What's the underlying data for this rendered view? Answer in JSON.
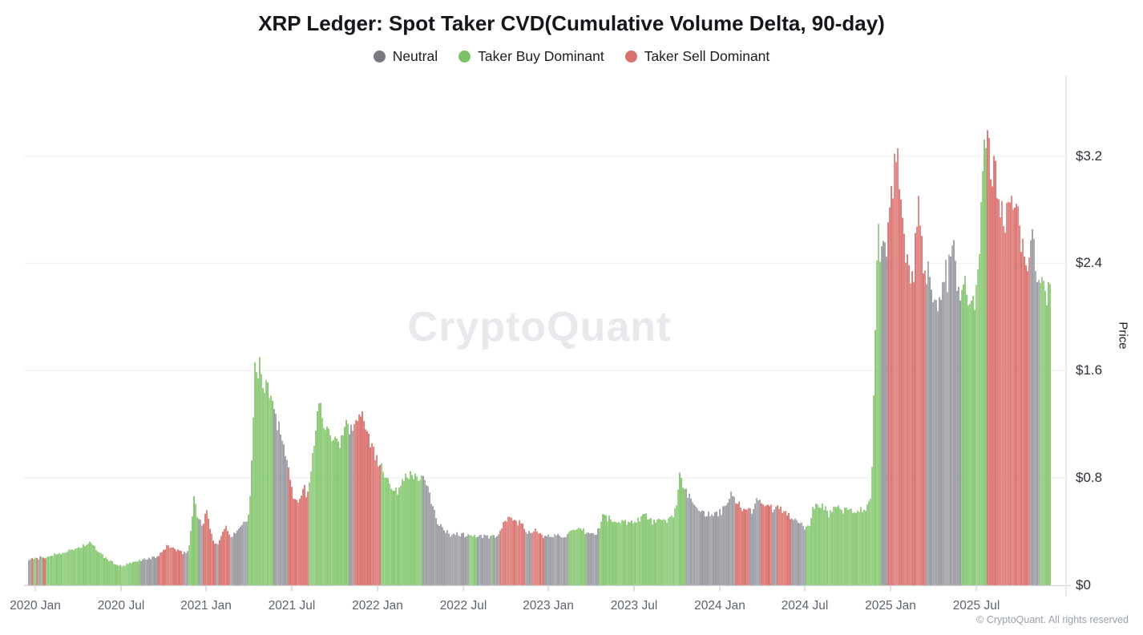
{
  "title": "XRP Ledger: Spot Taker CVD(Cumulative Volume Delta, 90-day)",
  "legend": [
    {
      "key": "N",
      "label": "Neutral",
      "color": "#787881"
    },
    {
      "key": "B",
      "label": "Taker Buy Dominant",
      "color": "#7cc166"
    },
    {
      "key": "S",
      "label": "Taker Sell Dominant",
      "color": "#d8706c"
    }
  ],
  "watermark": "CryptoQuant",
  "copyright": "© CryptoQuant. All rights reserved",
  "chart_data": {
    "type": "bar",
    "title": "XRP Ledger: Spot Taker CVD(Cumulative Volume Delta, 90-day)",
    "xlabel": "",
    "ylabel": "Price",
    "ylim": [
      0,
      3.8
    ],
    "grid": "horizontal",
    "legend_position": "top",
    "y_ticks": [
      {
        "value": 0,
        "label": "$0"
      },
      {
        "value": 0.8,
        "label": "$0.8"
      },
      {
        "value": 1.6,
        "label": "$1.6"
      },
      {
        "value": 2.4,
        "label": "$2.4"
      },
      {
        "value": 3.2,
        "label": "$3.2"
      }
    ],
    "axis_span": 1274,
    "x_ticks": [
      {
        "pos": 8,
        "label": "2020 Jan"
      },
      {
        "pos": 115,
        "label": "2020 Jul"
      },
      {
        "pos": 221,
        "label": "2021 Jan"
      },
      {
        "pos": 328,
        "label": "2021 Jul"
      },
      {
        "pos": 435,
        "label": "2022 Jan"
      },
      {
        "pos": 542,
        "label": "2022 Jul"
      },
      {
        "pos": 648,
        "label": "2023 Jan"
      },
      {
        "pos": 755,
        "label": "2023 Jul"
      },
      {
        "pos": 862,
        "label": "2024 Jan"
      },
      {
        "pos": 968,
        "label": "2024 Jul"
      },
      {
        "pos": 1075,
        "label": "2025 Jan"
      },
      {
        "pos": 1182,
        "label": "2025 Jul"
      }
    ],
    "categories": {
      "N": "Neutral",
      "B": "Taker Buy Dominant",
      "S": "Taker Sell Dominant"
    },
    "colors": {
      "N": "#8d8d96",
      "B": "#76c05e",
      "S": "#d65f5b"
    },
    "series_keyframes": [
      [
        0,
        0.19,
        "N"
      ],
      [
        3,
        0.2,
        "S"
      ],
      [
        6,
        0.19,
        "B"
      ],
      [
        9,
        0.21,
        "S"
      ],
      [
        12,
        0.2,
        "N"
      ],
      [
        15,
        0.21,
        "B"
      ],
      [
        18,
        0.2,
        "S"
      ],
      [
        22,
        0.21,
        "B"
      ],
      [
        34,
        0.235,
        "B"
      ],
      [
        49,
        0.255,
        "B"
      ],
      [
        64,
        0.285,
        "B"
      ],
      [
        76,
        0.315,
        "B"
      ],
      [
        84,
        0.27,
        "B"
      ],
      [
        94,
        0.21,
        "B"
      ],
      [
        106,
        0.165,
        "B"
      ],
      [
        116,
        0.14,
        "B"
      ],
      [
        122,
        0.155,
        "B"
      ],
      [
        130,
        0.17,
        "B"
      ],
      [
        136,
        0.18,
        "B"
      ],
      [
        140,
        0.19,
        "N"
      ],
      [
        150,
        0.2,
        "N"
      ],
      [
        158,
        0.21,
        "N"
      ],
      [
        161,
        0.215,
        "S"
      ],
      [
        166,
        0.245,
        "S"
      ],
      [
        172,
        0.295,
        "S"
      ],
      [
        178,
        0.285,
        "S"
      ],
      [
        184,
        0.26,
        "S"
      ],
      [
        190,
        0.245,
        "S"
      ],
      [
        193,
        0.24,
        "N"
      ],
      [
        198,
        0.255,
        "N"
      ],
      [
        200,
        0.3,
        "B"
      ],
      [
        203,
        0.45,
        "B"
      ],
      [
        206,
        0.66,
        "B"
      ],
      [
        208,
        0.6,
        "B"
      ],
      [
        210,
        0.52,
        "B"
      ],
      [
        212,
        0.52,
        "N"
      ],
      [
        214,
        0.48,
        "N"
      ],
      [
        216,
        0.45,
        "N"
      ],
      [
        218,
        0.44,
        "S"
      ],
      [
        220,
        0.52,
        "S"
      ],
      [
        222,
        0.57,
        "S"
      ],
      [
        224,
        0.5,
        "S"
      ],
      [
        226,
        0.44,
        "S"
      ],
      [
        229,
        0.36,
        "S"
      ],
      [
        231,
        0.31,
        "S"
      ],
      [
        233,
        0.3,
        "N"
      ],
      [
        236,
        0.315,
        "N"
      ],
      [
        238,
        0.33,
        "S"
      ],
      [
        242,
        0.39,
        "S"
      ],
      [
        245,
        0.45,
        "S"
      ],
      [
        248,
        0.41,
        "S"
      ],
      [
        250,
        0.36,
        "S"
      ],
      [
        252,
        0.36,
        "N"
      ],
      [
        257,
        0.4,
        "N"
      ],
      [
        262,
        0.43,
        "N"
      ],
      [
        267,
        0.46,
        "N"
      ],
      [
        272,
        0.48,
        "N"
      ],
      [
        274,
        0.52,
        "B"
      ],
      [
        277,
        0.78,
        "B"
      ],
      [
        280,
        1.3,
        "B"
      ],
      [
        283,
        1.83,
        "B"
      ],
      [
        285,
        1.5,
        "B"
      ],
      [
        288,
        1.66,
        "B"
      ],
      [
        291,
        1.52,
        "B"
      ],
      [
        294,
        1.4,
        "B"
      ],
      [
        297,
        1.52,
        "B"
      ],
      [
        300,
        1.45,
        "B"
      ],
      [
        303,
        1.36,
        "B"
      ],
      [
        306,
        1.32,
        "N"
      ],
      [
        309,
        1.2,
        "N"
      ],
      [
        312,
        1.24,
        "N"
      ],
      [
        316,
        1.05,
        "N"
      ],
      [
        320,
        0.97,
        "N"
      ],
      [
        323,
        0.88,
        "S"
      ],
      [
        327,
        0.74,
        "S"
      ],
      [
        331,
        0.66,
        "S"
      ],
      [
        335,
        0.61,
        "S"
      ],
      [
        339,
        0.68,
        "S"
      ],
      [
        343,
        0.74,
        "S"
      ],
      [
        346,
        0.66,
        "S"
      ],
      [
        349,
        0.72,
        "B"
      ],
      [
        353,
        0.92,
        "B"
      ],
      [
        357,
        1.12,
        "B"
      ],
      [
        361,
        1.32,
        "B"
      ],
      [
        364,
        1.38,
        "B"
      ],
      [
        367,
        1.26,
        "B"
      ],
      [
        370,
        1.18,
        "B"
      ],
      [
        373,
        1.26,
        "B"
      ],
      [
        377,
        1.12,
        "B"
      ],
      [
        381,
        1.06,
        "B"
      ],
      [
        385,
        1.12,
        "B"
      ],
      [
        389,
        1.06,
        "B"
      ],
      [
        393,
        1.14,
        "B"
      ],
      [
        396,
        1.18,
        "B"
      ],
      [
        399,
        1.16,
        "N"
      ],
      [
        402,
        1.18,
        "N"
      ],
      [
        405,
        1.16,
        "S"
      ],
      [
        409,
        1.26,
        "S"
      ],
      [
        413,
        1.33,
        "S"
      ],
      [
        417,
        1.28,
        "S"
      ],
      [
        421,
        1.18,
        "S"
      ],
      [
        425,
        1.1,
        "S"
      ],
      [
        429,
        1.02,
        "S"
      ],
      [
        433,
        0.95,
        "S"
      ],
      [
        436,
        0.9,
        "S"
      ],
      [
        439,
        0.93,
        "B"
      ],
      [
        443,
        0.86,
        "B"
      ],
      [
        447,
        0.8,
        "B"
      ],
      [
        451,
        0.76,
        "B"
      ],
      [
        455,
        0.72,
        "B"
      ],
      [
        459,
        0.69,
        "B"
      ],
      [
        463,
        0.73,
        "B"
      ],
      [
        467,
        0.8,
        "B"
      ],
      [
        471,
        0.85,
        "B"
      ],
      [
        475,
        0.82,
        "B"
      ],
      [
        479,
        0.8,
        "B"
      ],
      [
        483,
        0.83,
        "B"
      ],
      [
        487,
        0.79,
        "B"
      ],
      [
        491,
        0.79,
        "N"
      ],
      [
        495,
        0.76,
        "N"
      ],
      [
        499,
        0.69,
        "N"
      ],
      [
        503,
        0.61,
        "N"
      ],
      [
        507,
        0.53,
        "N"
      ],
      [
        511,
        0.46,
        "N"
      ],
      [
        515,
        0.43,
        "N"
      ],
      [
        520,
        0.4,
        "N"
      ],
      [
        526,
        0.38,
        "N"
      ],
      [
        532,
        0.385,
        "N"
      ],
      [
        538,
        0.38,
        "N"
      ],
      [
        544,
        0.375,
        "N"
      ],
      [
        549,
        0.37,
        "B"
      ],
      [
        555,
        0.375,
        "B"
      ],
      [
        560,
        0.36,
        "N"
      ],
      [
        568,
        0.365,
        "N"
      ],
      [
        574,
        0.36,
        "N"
      ],
      [
        577,
        0.365,
        "B"
      ],
      [
        580,
        0.36,
        "N"
      ],
      [
        584,
        0.365,
        "N"
      ],
      [
        587,
        0.385,
        "S"
      ],
      [
        592,
        0.45,
        "S"
      ],
      [
        598,
        0.51,
        "S"
      ],
      [
        604,
        0.49,
        "S"
      ],
      [
        610,
        0.47,
        "S"
      ],
      [
        616,
        0.45,
        "S"
      ],
      [
        619,
        0.41,
        "N"
      ],
      [
        623,
        0.395,
        "N"
      ],
      [
        627,
        0.41,
        "S"
      ],
      [
        631,
        0.415,
        "S"
      ],
      [
        635,
        0.39,
        "S"
      ],
      [
        640,
        0.365,
        "S"
      ],
      [
        644,
        0.36,
        "N"
      ],
      [
        652,
        0.37,
        "N"
      ],
      [
        660,
        0.375,
        "N"
      ],
      [
        667,
        0.37,
        "N"
      ],
      [
        671,
        0.375,
        "N"
      ],
      [
        674,
        0.385,
        "B"
      ],
      [
        680,
        0.4,
        "B"
      ],
      [
        686,
        0.41,
        "B"
      ],
      [
        692,
        0.405,
        "B"
      ],
      [
        696,
        0.39,
        "N"
      ],
      [
        702,
        0.385,
        "N"
      ],
      [
        708,
        0.38,
        "N"
      ],
      [
        712,
        0.44,
        "B"
      ],
      [
        716,
        0.52,
        "B"
      ],
      [
        721,
        0.505,
        "B"
      ],
      [
        726,
        0.49,
        "B"
      ],
      [
        732,
        0.465,
        "B"
      ],
      [
        738,
        0.47,
        "B"
      ],
      [
        744,
        0.48,
        "B"
      ],
      [
        750,
        0.465,
        "B"
      ],
      [
        756,
        0.48,
        "B"
      ],
      [
        762,
        0.5,
        "B"
      ],
      [
        768,
        0.53,
        "B"
      ],
      [
        774,
        0.49,
        "B"
      ],
      [
        780,
        0.47,
        "B"
      ],
      [
        786,
        0.48,
        "B"
      ],
      [
        792,
        0.475,
        "B"
      ],
      [
        798,
        0.49,
        "B"
      ],
      [
        804,
        0.53,
        "B"
      ],
      [
        808,
        0.62,
        "B"
      ],
      [
        811,
        0.79,
        "B"
      ],
      [
        813,
        0.815,
        "B"
      ],
      [
        815,
        0.73,
        "B"
      ],
      [
        817,
        0.69,
        "B"
      ],
      [
        820,
        0.7,
        "N"
      ],
      [
        823,
        0.66,
        "N"
      ],
      [
        827,
        0.63,
        "N"
      ],
      [
        833,
        0.6,
        "N"
      ],
      [
        839,
        0.56,
        "N"
      ],
      [
        845,
        0.53,
        "N"
      ],
      [
        852,
        0.515,
        "N"
      ],
      [
        859,
        0.53,
        "N"
      ],
      [
        864,
        0.55,
        "N"
      ],
      [
        869,
        0.58,
        "N"
      ],
      [
        873,
        0.62,
        "N"
      ],
      [
        876,
        0.7,
        "N"
      ],
      [
        879,
        0.64,
        "N"
      ],
      [
        882,
        0.63,
        "S"
      ],
      [
        887,
        0.6,
        "S"
      ],
      [
        892,
        0.56,
        "S"
      ],
      [
        897,
        0.55,
        "S"
      ],
      [
        900,
        0.55,
        "N"
      ],
      [
        904,
        0.56,
        "N"
      ],
      [
        908,
        0.68,
        "N"
      ],
      [
        911,
        0.62,
        "N"
      ],
      [
        914,
        0.62,
        "S"
      ],
      [
        919,
        0.61,
        "S"
      ],
      [
        924,
        0.6,
        "S"
      ],
      [
        927,
        0.56,
        "N"
      ],
      [
        930,
        0.55,
        "N"
      ],
      [
        933,
        0.58,
        "S"
      ],
      [
        938,
        0.57,
        "S"
      ],
      [
        943,
        0.55,
        "S"
      ],
      [
        948,
        0.53,
        "S"
      ],
      [
        951,
        0.51,
        "N"
      ],
      [
        956,
        0.49,
        "N"
      ],
      [
        961,
        0.47,
        "N"
      ],
      [
        966,
        0.45,
        "N"
      ],
      [
        970,
        0.42,
        "B"
      ],
      [
        974,
        0.44,
        "B"
      ],
      [
        978,
        0.58,
        "B"
      ],
      [
        982,
        0.61,
        "B"
      ],
      [
        986,
        0.56,
        "B"
      ],
      [
        990,
        0.6,
        "B"
      ],
      [
        994,
        0.57,
        "B"
      ],
      [
        998,
        0.53,
        "B"
      ],
      [
        1002,
        0.56,
        "B"
      ],
      [
        1006,
        0.6,
        "B"
      ],
      [
        1010,
        0.62,
        "B"
      ],
      [
        1014,
        0.57,
        "B"
      ],
      [
        1019,
        0.55,
        "B"
      ],
      [
        1024,
        0.58,
        "B"
      ],
      [
        1029,
        0.56,
        "B"
      ],
      [
        1034,
        0.55,
        "B"
      ],
      [
        1039,
        0.57,
        "B"
      ],
      [
        1044,
        0.56,
        "B"
      ],
      [
        1048,
        0.6,
        "B"
      ],
      [
        1051,
        0.7,
        "B"
      ],
      [
        1053,
        1.1,
        "B"
      ],
      [
        1055,
        1.6,
        "B"
      ],
      [
        1057,
        2.3,
        "B"
      ],
      [
        1059,
        2.72,
        "B"
      ],
      [
        1061,
        2.55,
        "B"
      ],
      [
        1063,
        2.45,
        "N"
      ],
      [
        1065,
        2.6,
        "N"
      ],
      [
        1067,
        2.5,
        "N"
      ],
      [
        1069,
        2.55,
        "N"
      ],
      [
        1071,
        2.5,
        "S"
      ],
      [
        1074,
        2.75,
        "S"
      ],
      [
        1077,
        3.0,
        "S"
      ],
      [
        1080,
        3.1,
        "S"
      ],
      [
        1083,
        3.28,
        "S"
      ],
      [
        1086,
        3.05,
        "S"
      ],
      [
        1089,
        2.85,
        "S"
      ],
      [
        1092,
        2.6,
        "S"
      ],
      [
        1095,
        2.45,
        "S"
      ],
      [
        1098,
        2.3,
        "S"
      ],
      [
        1101,
        2.2,
        "S"
      ],
      [
        1104,
        2.35,
        "S"
      ],
      [
        1107,
        2.6,
        "S"
      ],
      [
        1110,
        2.93,
        "S"
      ],
      [
        1113,
        2.6,
        "S"
      ],
      [
        1116,
        2.35,
        "S"
      ],
      [
        1119,
        2.3,
        "N"
      ],
      [
        1122,
        2.4,
        "N"
      ],
      [
        1125,
        2.3,
        "N"
      ],
      [
        1128,
        2.2,
        "N"
      ],
      [
        1131,
        2.1,
        "N"
      ],
      [
        1134,
        2.02,
        "N"
      ],
      [
        1137,
        2.15,
        "N"
      ],
      [
        1140,
        2.25,
        "N"
      ],
      [
        1143,
        2.35,
        "N"
      ],
      [
        1146,
        2.3,
        "N"
      ],
      [
        1149,
        2.45,
        "N"
      ],
      [
        1152,
        2.56,
        "N"
      ],
      [
        1155,
        2.4,
        "N"
      ],
      [
        1158,
        2.3,
        "N"
      ],
      [
        1161,
        2.25,
        "N"
      ],
      [
        1164,
        2.2,
        "B"
      ],
      [
        1168,
        2.25,
        "B"
      ],
      [
        1172,
        2.15,
        "B"
      ],
      [
        1176,
        2.22,
        "B"
      ],
      [
        1180,
        2.12,
        "B"
      ],
      [
        1183,
        2.25,
        "B"
      ],
      [
        1186,
        2.45,
        "B"
      ],
      [
        1188,
        2.8,
        "B"
      ],
      [
        1190,
        3.1,
        "B"
      ],
      [
        1192,
        3.4,
        "B"
      ],
      [
        1193,
        3.54,
        "B"
      ],
      [
        1194,
        3.3,
        "B"
      ],
      [
        1196,
        3.3,
        "S"
      ],
      [
        1199,
        3.12,
        "S"
      ],
      [
        1202,
        3.05,
        "S"
      ],
      [
        1205,
        3.22,
        "S"
      ],
      [
        1208,
        3.0,
        "S"
      ],
      [
        1211,
        2.92,
        "S"
      ],
      [
        1214,
        2.78,
        "S"
      ],
      [
        1217,
        2.62,
        "S"
      ],
      [
        1220,
        2.88,
        "S"
      ],
      [
        1223,
        2.95,
        "S"
      ],
      [
        1226,
        3.0,
        "S"
      ],
      [
        1229,
        2.88,
        "S"
      ],
      [
        1232,
        2.95,
        "S"
      ],
      [
        1235,
        2.75,
        "S"
      ],
      [
        1238,
        2.6,
        "S"
      ],
      [
        1241,
        2.5,
        "S"
      ],
      [
        1244,
        2.38,
        "S"
      ],
      [
        1247,
        2.28,
        "S"
      ],
      [
        1249,
        2.45,
        "N"
      ],
      [
        1251,
        2.63,
        "N"
      ],
      [
        1253,
        2.5,
        "N"
      ],
      [
        1256,
        2.38,
        "N"
      ],
      [
        1259,
        2.25,
        "N"
      ],
      [
        1261,
        2.3,
        "B"
      ],
      [
        1264,
        2.22,
        "B"
      ],
      [
        1267,
        2.28,
        "B"
      ],
      [
        1270,
        2.18,
        "B"
      ],
      [
        1274,
        2.22,
        "B"
      ]
    ]
  }
}
